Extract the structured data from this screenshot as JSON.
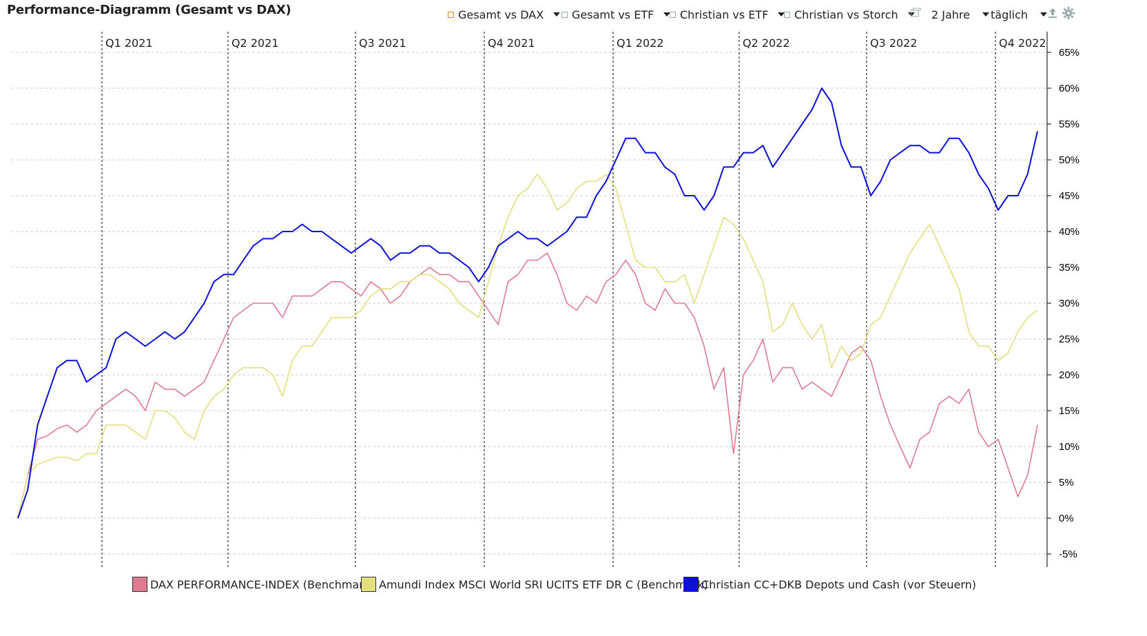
{
  "title": "Performance-Diagramm (Gesamt vs DAX)",
  "toolbar": {
    "items": [
      {
        "label": "Gesamt vs DAX",
        "checked": true
      },
      {
        "label": "Gesamt vs ETF",
        "checked": false
      },
      {
        "label": "Christian vs ETF",
        "checked": false
      },
      {
        "label": "Christian vs Storch",
        "checked": false
      }
    ],
    "period": "2 Jahre",
    "interval": "täglich",
    "icons": [
      "window-icon",
      "export-icon",
      "settings-gear-icon"
    ]
  },
  "chart_data": {
    "type": "line",
    "title": "",
    "xlabel": "",
    "ylabel": "",
    "y_unit": "%",
    "ylim": [
      -7,
      67
    ],
    "yticks": [
      65,
      60,
      55,
      50,
      45,
      40,
      35,
      30,
      25,
      20,
      15,
      10,
      5,
      0,
      -5
    ],
    "ytick_labels": [
      "65%",
      "60%",
      "55%",
      "50%",
      "45%",
      "40%",
      "35%",
      "30%",
      "25%",
      "20%",
      "15%",
      "10%",
      "5%",
      "0%",
      "-5%"
    ],
    "grid": true,
    "x_range": [
      "2020-11-01",
      "2022-11-01"
    ],
    "quarter_markers": [
      {
        "label": "Q1 2021",
        "date": "2021-01-01"
      },
      {
        "label": "Q2 2021",
        "date": "2021-04-01"
      },
      {
        "label": "Q3 2021",
        "date": "2021-07-01"
      },
      {
        "label": "Q4 2021",
        "date": "2021-10-01"
      },
      {
        "label": "Q1 2022",
        "date": "2022-01-01"
      },
      {
        "label": "Q2 2022",
        "date": "2022-04-01"
      },
      {
        "label": "Q3 2022",
        "date": "2022-07-01"
      },
      {
        "label": "Q4 2022",
        "date": "2022-10-01"
      }
    ],
    "x": [
      "2020-11-02",
      "2020-11-09",
      "2020-11-16",
      "2020-11-23",
      "2020-11-30",
      "2020-12-07",
      "2020-12-14",
      "2020-12-21",
      "2020-12-28",
      "2021-01-04",
      "2021-01-11",
      "2021-01-18",
      "2021-01-25",
      "2021-02-01",
      "2021-02-08",
      "2021-02-15",
      "2021-02-22",
      "2021-03-01",
      "2021-03-08",
      "2021-03-15",
      "2021-03-22",
      "2021-03-29",
      "2021-04-05",
      "2021-04-12",
      "2021-04-19",
      "2021-04-26",
      "2021-05-03",
      "2021-05-10",
      "2021-05-17",
      "2021-05-24",
      "2021-05-31",
      "2021-06-07",
      "2021-06-14",
      "2021-06-21",
      "2021-06-28",
      "2021-07-05",
      "2021-07-12",
      "2021-07-19",
      "2021-07-26",
      "2021-08-02",
      "2021-08-09",
      "2021-08-16",
      "2021-08-23",
      "2021-08-30",
      "2021-09-06",
      "2021-09-13",
      "2021-09-20",
      "2021-09-27",
      "2021-10-04",
      "2021-10-11",
      "2021-10-18",
      "2021-10-25",
      "2021-11-01",
      "2021-11-08",
      "2021-11-15",
      "2021-11-22",
      "2021-11-29",
      "2021-12-06",
      "2021-12-13",
      "2021-12-20",
      "2021-12-27",
      "2022-01-03",
      "2022-01-10",
      "2022-01-17",
      "2022-01-24",
      "2022-01-31",
      "2022-02-07",
      "2022-02-14",
      "2022-02-21",
      "2022-02-28",
      "2022-03-07",
      "2022-03-14",
      "2022-03-21",
      "2022-03-28",
      "2022-04-04",
      "2022-04-11",
      "2022-04-18",
      "2022-04-25",
      "2022-05-02",
      "2022-05-09",
      "2022-05-16",
      "2022-05-23",
      "2022-05-30",
      "2022-06-06",
      "2022-06-13",
      "2022-06-20",
      "2022-06-27",
      "2022-07-04",
      "2022-07-11",
      "2022-07-18",
      "2022-07-25",
      "2022-08-01",
      "2022-08-08",
      "2022-08-15",
      "2022-08-22",
      "2022-08-29",
      "2022-09-05",
      "2022-09-12",
      "2022-09-19",
      "2022-09-26",
      "2022-10-03",
      "2022-10-10",
      "2022-10-17",
      "2022-10-24",
      "2022-10-31"
    ],
    "series": [
      {
        "name": "DAX PERFORMANCE-INDEX (Benchmark)",
        "color": "#de7b8e",
        "values": [
          0,
          6,
          11,
          11.5,
          12.5,
          13,
          12,
          13,
          15,
          16,
          17,
          18,
          17,
          15,
          19,
          18,
          18,
          17,
          18,
          19,
          22,
          25,
          28,
          29,
          30,
          30,
          30,
          28,
          31,
          31,
          31,
          32,
          33,
          33,
          32,
          31,
          33,
          32,
          30,
          31,
          33,
          34,
          35,
          34,
          34,
          33,
          33,
          31,
          29,
          27,
          33,
          34,
          36,
          36,
          37,
          34,
          30,
          29,
          31,
          30,
          33,
          34,
          36,
          34,
          30,
          29,
          32,
          30,
          30,
          28,
          24,
          18,
          21,
          9,
          20,
          22,
          25,
          19,
          21,
          21,
          18,
          19,
          18,
          17,
          20,
          23,
          24,
          22,
          17,
          13,
          10,
          7,
          11,
          12,
          16,
          17,
          16,
          18,
          12,
          10,
          11,
          7,
          3,
          6,
          13
        ]
      },
      {
        "name": "Amundi Index MSCI World SRI UCITS ETF DR C (Benchmark)",
        "color": "#e3df7e",
        "values": [
          0,
          6,
          7.5,
          8,
          8.5,
          8.5,
          8,
          9,
          9,
          13,
          13,
          13,
          12,
          11,
          15,
          15,
          14,
          12,
          11,
          15,
          17,
          18,
          20,
          21,
          21,
          21,
          20,
          17,
          22,
          24,
          24,
          26,
          28,
          28,
          28,
          29,
          31,
          32,
          32,
          33,
          33,
          34,
          34,
          33,
          32,
          30,
          29,
          28,
          33,
          38,
          42,
          45,
          46,
          48,
          46,
          43,
          44,
          46,
          47,
          47,
          48,
          46,
          41,
          36,
          35,
          35,
          33,
          33,
          34,
          30,
          34,
          38,
          42,
          41,
          39,
          36,
          33,
          26,
          27,
          30,
          27,
          25,
          27,
          21,
          24,
          22,
          23,
          27,
          28,
          31,
          34,
          37,
          39,
          41,
          38,
          35,
          32,
          26,
          24,
          24,
          22,
          23,
          26,
          28,
          29
        ]
      },
      {
        "name": "Christian CC+DKB Depots und Cash (vor Steuern)",
        "color": "#0a10d8",
        "values": [
          0,
          4,
          13,
          17,
          21,
          22,
          22,
          19,
          20,
          21,
          25,
          26,
          25,
          24,
          25,
          26,
          25,
          26,
          28,
          30,
          33,
          34,
          34,
          36,
          38,
          39,
          39,
          40,
          40,
          41,
          40,
          40,
          39,
          38,
          37,
          38,
          39,
          38,
          36,
          37,
          37,
          38,
          38,
          37,
          37,
          36,
          35,
          33,
          35,
          38,
          39,
          40,
          39,
          39,
          38,
          39,
          40,
          42,
          42,
          45,
          47,
          50,
          53,
          53,
          51,
          51,
          49,
          48,
          45,
          45,
          43,
          45,
          49,
          49,
          51,
          51,
          52,
          49,
          51,
          53,
          55,
          57,
          60,
          58,
          52,
          49,
          49,
          45,
          47,
          50,
          51,
          52,
          52,
          51,
          51,
          53,
          53,
          51,
          48,
          46,
          43,
          45,
          45,
          48,
          54
        ]
      }
    ],
    "legend": {
      "position": "bottom-center",
      "entries": [
        "DAX PERFORMANCE-INDEX (Benchmark)",
        "Amundi Index MSCI World SRI UCITS ETF DR C (Benchmark)",
        "Christian CC+DKB Depots und Cash (vor Steuern)"
      ]
    }
  }
}
